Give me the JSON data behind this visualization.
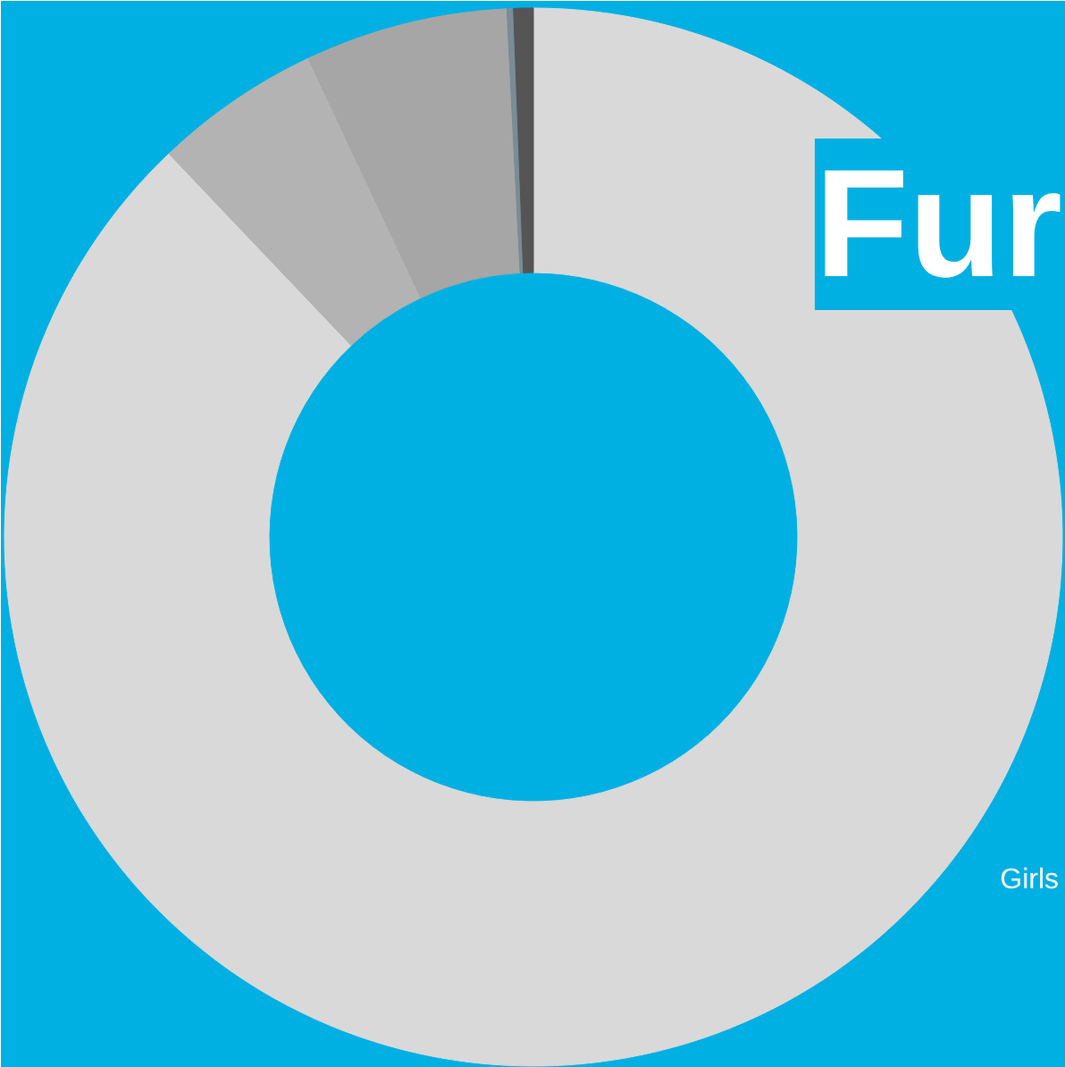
{
  "chart_data": {
    "type": "donut",
    "title": "Fur",
    "categories": [
      null,
      null,
      null,
      null,
      null
    ],
    "values": [
      87.9,
      5.1,
      6.2,
      0.2,
      0.6
    ],
    "colors": [
      "#d9d9d9",
      "#b3b3b3",
      "#a6a6a6",
      "#7a8c96",
      "#555555"
    ],
    "annotations": [
      "Girls"
    ]
  }
}
